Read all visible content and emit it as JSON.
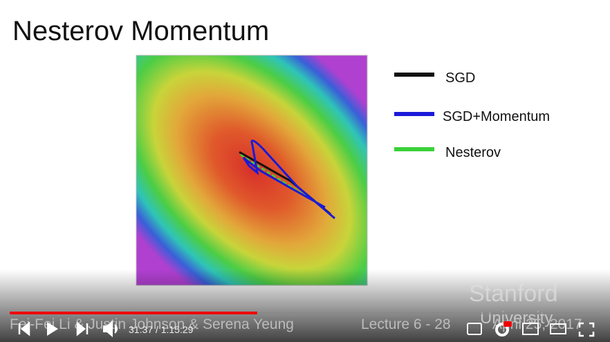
{
  "slide": {
    "title": "Nesterov Momentum",
    "legend": [
      "SGD",
      "SGD+Momentum",
      "Nesterov"
    ],
    "watermark": [
      "Stanford",
      "University"
    ],
    "footer": {
      "authors": "Fei-Fei Li & Justin Johnson & Serena Yeung",
      "lecture": "Lecture 6 - 28",
      "date": "April 25, 2017"
    }
  },
  "player": {
    "time": "31:37 / 1:15:29"
  }
}
